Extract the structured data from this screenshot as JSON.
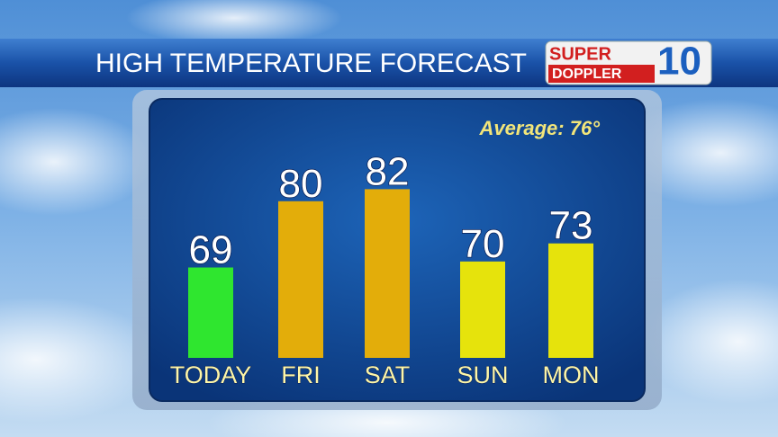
{
  "chart_data": {
    "type": "bar",
    "title": "HIGH TEMPERATURE FORECAST",
    "annotation": "Average: 76°",
    "categories": [
      "TODAY",
      "FRI",
      "SAT",
      "SUN",
      "MON"
    ],
    "values": [
      69,
      80,
      82,
      70,
      73
    ],
    "colors": [
      "#2fe62f",
      "#e3ad0a",
      "#e3ad0a",
      "#e6e30c",
      "#e6e30c"
    ],
    "ylim": [
      54,
      84
    ]
  },
  "logo": {
    "line1": "SUPER",
    "line2": "DOPPLER",
    "number": "10"
  }
}
